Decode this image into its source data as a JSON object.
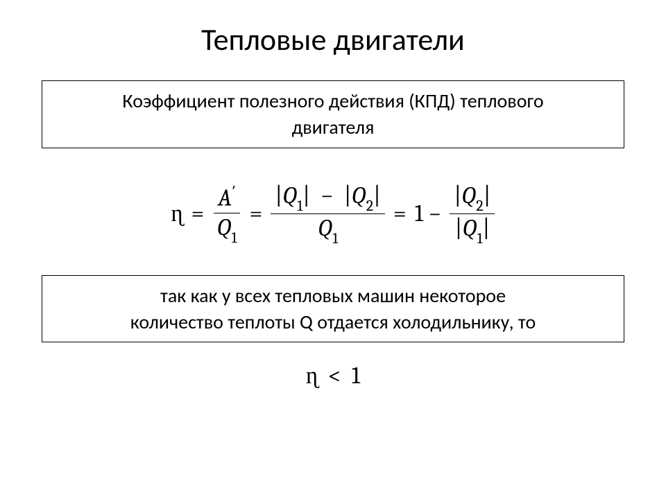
{
  "title": "Тепловые двигатели",
  "box1_line1": "Коэффициент полезного действия (КПД) теплового",
  "box1_line2": "двигателя",
  "box2_line1": "так как у всех тепловых машин некоторое",
  "box2_line2": "количество теплоты Q отдается холодильнику, то",
  "formula": {
    "eta": "ɳ",
    "eq": "=",
    "A_prime": "A",
    "prime": "′",
    "Q1": "Q",
    "one": "1",
    "two": "2",
    "bar": "|",
    "minus": "−",
    "oneNum": "1",
    "lt": "<"
  },
  "style": {
    "title_fontsize": 44,
    "box_fontsize": 28,
    "formula_fontsize": 34,
    "text_color": "#000000",
    "bg_color": "#ffffff",
    "border_color": "#000000"
  }
}
